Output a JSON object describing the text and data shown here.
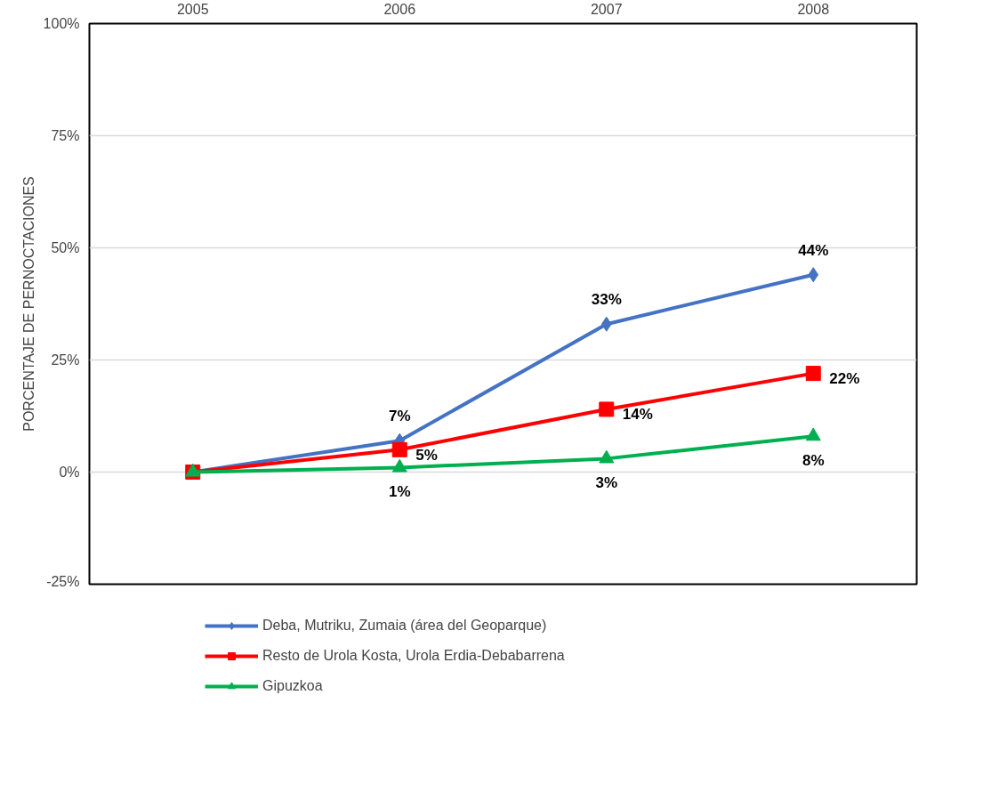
{
  "chart_data": {
    "type": "line",
    "ylabel": "PORCENTAJE DE PERNOCTACIONES",
    "categories": [
      "2005",
      "2006",
      "2007",
      "2008"
    ],
    "series": [
      {
        "name": "Deba, Mutriku, Zumaia (área del Geoparque)",
        "color": "#4472c4",
        "marker": "diamond",
        "values": [
          0,
          7,
          33,
          44
        ],
        "value_labels": [
          null,
          "7%",
          "33%",
          "44%"
        ]
      },
      {
        "name": "Resto de Urola Kosta, Urola Erdia-Debabarrena",
        "color": "#ff0000",
        "marker": "square",
        "values": [
          0,
          5,
          14,
          22
        ],
        "value_labels": [
          null,
          "5%",
          "14%",
          "22%"
        ]
      },
      {
        "name": "Gipuzkoa",
        "color": "#00b050",
        "marker": "triangle",
        "values": [
          0,
          1,
          3,
          8
        ],
        "value_labels": [
          null,
          "1%",
          "3%",
          "8%"
        ]
      }
    ],
    "ylim": [
      -25,
      100
    ],
    "yticks": [
      {
        "value": -25,
        "label": "-25%"
      },
      {
        "value": 0,
        "label": "0%"
      },
      {
        "value": 25,
        "label": "25%"
      },
      {
        "value": 50,
        "label": "50%"
      },
      {
        "value": 75,
        "label": "75%"
      },
      {
        "value": 100,
        "label": "100%"
      }
    ],
    "grid": "y",
    "legend": "bottom",
    "line_style": "solid"
  }
}
